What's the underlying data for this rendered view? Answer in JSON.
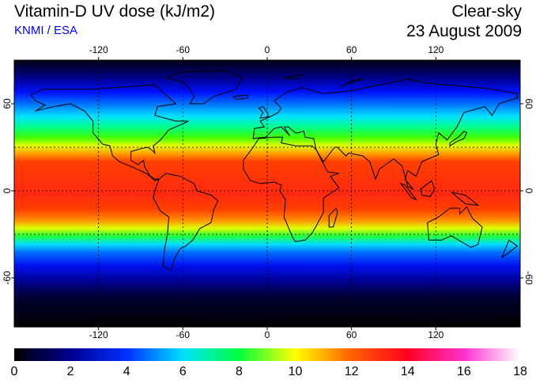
{
  "header": {
    "title": "Vitamin-D UV dose (kJ/m2)",
    "credit": "KNMI / ESA",
    "condition": "Clear-sky",
    "date": "23 August 2009"
  },
  "map": {
    "lon_ticks": [
      -120,
      -60,
      0,
      60,
      120
    ],
    "lat_ticks": [
      60,
      0,
      -60
    ],
    "grid_lats": [
      30,
      -30
    ],
    "grid_lons": [
      -120,
      -60,
      0,
      60,
      120
    ]
  },
  "colorbar": {
    "min": 0,
    "max": 18,
    "ticks": [
      "0",
      "2",
      "4",
      "6",
      "8",
      "10",
      "12",
      "14",
      "16",
      "18"
    ],
    "colors": [
      "#000000",
      "#000090",
      "#0030ff",
      "#00e0ff",
      "#00ff40",
      "#ffff00",
      "#ff6000",
      "#ff0020",
      "#ff30d0",
      "#ffffff"
    ]
  }
}
